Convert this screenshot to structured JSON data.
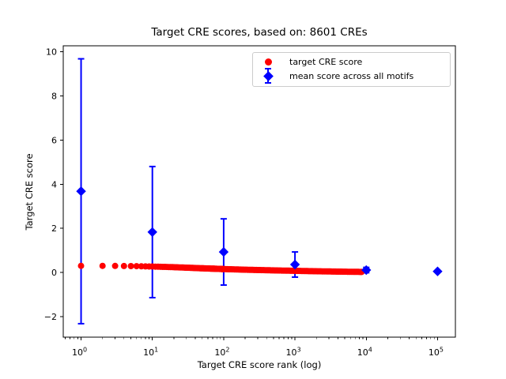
{
  "chart_data": {
    "type": "scatter",
    "title": "Target CRE scores, based on: 8601 CREs",
    "xlabel": "Target CRE score rank (log)",
    "ylabel": "Target CRE score",
    "x_scale": "log",
    "xlim_log10": [
      -0.25,
      5.25
    ],
    "ylim": [
      -2.93,
      10.27
    ],
    "x_major_tick_exponents": [
      0,
      1,
      2,
      3,
      4,
      5
    ],
    "x_tick_base": "10",
    "y_ticks": [
      -2,
      0,
      2,
      4,
      6,
      8,
      10
    ],
    "grid": false,
    "legend_position": "upper right",
    "colors": {
      "target_series": "#ff0000",
      "mean_series": "#0000ff",
      "axes": "#000000",
      "legend_border": "#cccccc",
      "background": "#ffffff"
    },
    "series": [
      {
        "name": "target CRE score",
        "marker": "circle",
        "color": "#ff0000",
        "count": 8601,
        "description": "dense monotonically decreasing band of 8601 points, rank 1 to 8601",
        "anchors_rank_score": [
          [
            1,
            0.3
          ],
          [
            2,
            0.3
          ],
          [
            5,
            0.29
          ],
          [
            10,
            0.27
          ],
          [
            20,
            0.24
          ],
          [
            50,
            0.19
          ],
          [
            100,
            0.155
          ],
          [
            200,
            0.125
          ],
          [
            500,
            0.095
          ],
          [
            1000,
            0.075
          ],
          [
            2000,
            0.055
          ],
          [
            5000,
            0.035
          ],
          [
            8601,
            0.025
          ]
        ]
      },
      {
        "name": "mean score across all motifs",
        "marker": "diamond",
        "color": "#0000ff",
        "points": [
          {
            "rank": 1,
            "mean": 3.68,
            "yerr": 6.0
          },
          {
            "rank": 10,
            "mean": 1.83,
            "yerr": 2.97
          },
          {
            "rank": 100,
            "mean": 0.93,
            "yerr": 1.5
          },
          {
            "rank": 1000,
            "mean": 0.36,
            "yerr": 0.57
          },
          {
            "rank": 10000,
            "mean": 0.11,
            "yerr": 0.12
          },
          {
            "rank": 100000,
            "mean": 0.05,
            "yerr": 0.0
          }
        ]
      }
    ]
  }
}
